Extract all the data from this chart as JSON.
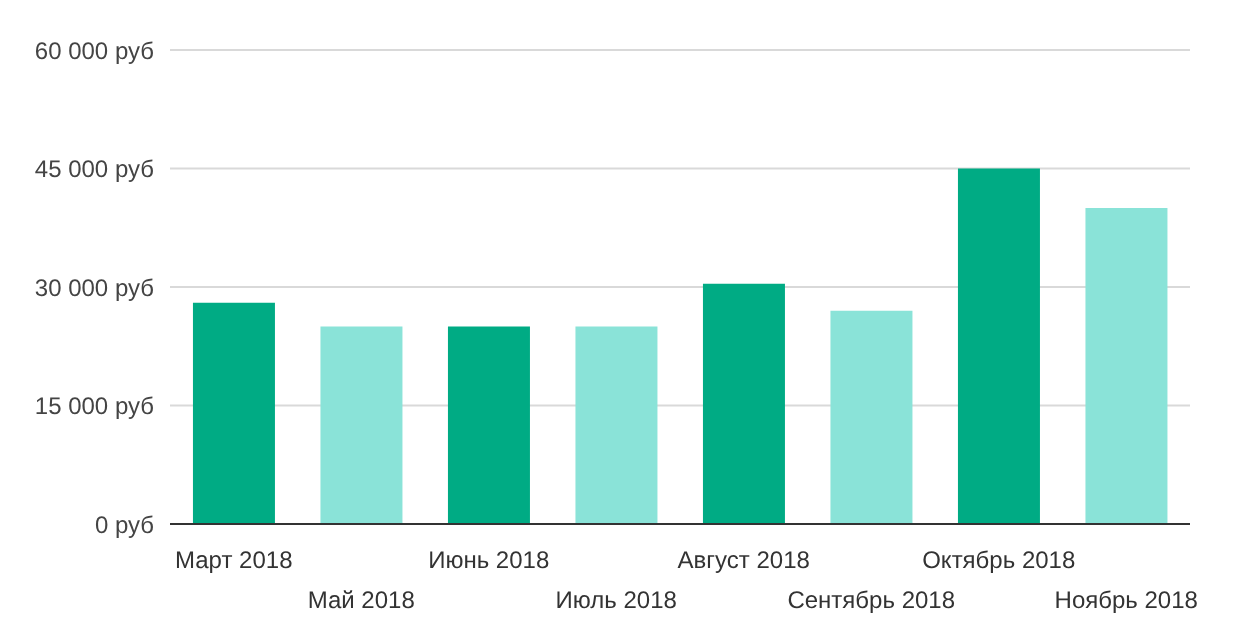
{
  "chart_data": {
    "type": "bar",
    "categories": [
      "Март 2018",
      "Май 2018",
      "Июнь 2018",
      "Июль 2018",
      "Август 2018",
      "Сентябрь 2018",
      "Октябрь 2018",
      "Ноябрь 2018"
    ],
    "values": [
      28000,
      25000,
      25000,
      25000,
      30400,
      27000,
      45000,
      40000
    ],
    "colors": [
      "#00ab84",
      "#8ae3d8",
      "#00ab84",
      "#8ae3d8",
      "#00ab84",
      "#8ae3d8",
      "#00ab84",
      "#8ae3d8"
    ],
    "ylim": [
      0,
      60000
    ],
    "yticks": [
      {
        "value": 0,
        "label": "0 руб"
      },
      {
        "value": 15000,
        "label": "15 000 руб"
      },
      {
        "value": 30000,
        "label": "30 000 руб"
      },
      {
        "value": 45000,
        "label": "45 000 руб"
      },
      {
        "value": 60000,
        "label": "60 000 руб"
      }
    ],
    "grid": "y"
  }
}
